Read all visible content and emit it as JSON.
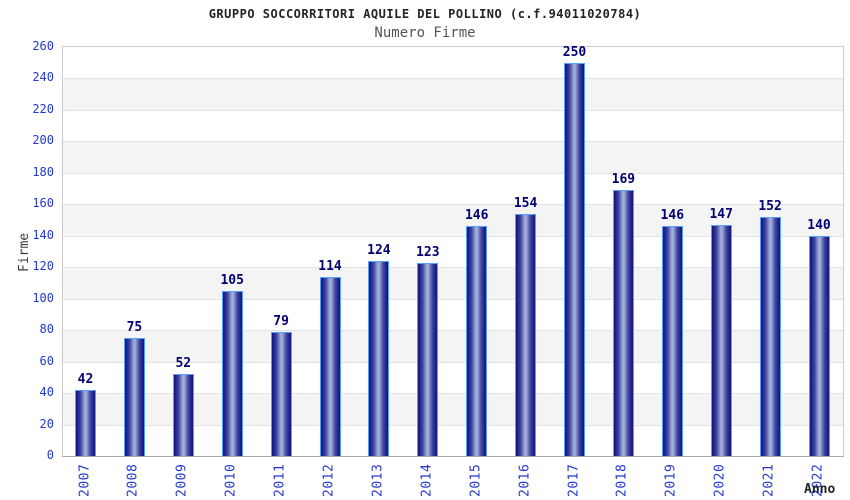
{
  "chart_data": {
    "type": "bar",
    "title": "GRUPPO SOCCORRITORI AQUILE DEL POLLINO (c.f.94011020784)",
    "subtitle": "Numero Firme",
    "xlabel": "Anno",
    "ylabel": "Firme",
    "categories": [
      "2007",
      "2008",
      "2009",
      "2010",
      "2011",
      "2012",
      "2013",
      "2014",
      "2015",
      "2016",
      "2017",
      "2018",
      "2019",
      "2020",
      "2021",
      "2022"
    ],
    "values": [
      42,
      75,
      52,
      105,
      79,
      114,
      124,
      123,
      146,
      154,
      250,
      169,
      146,
      147,
      152,
      140
    ],
    "ylim": [
      0,
      260
    ],
    "ytick_step": 20,
    "grid": "horizontal, alternating shaded bands",
    "legend": "none",
    "colors": {
      "axis_tick_text": "#2438cf",
      "data_label_text": "#000070",
      "title_text": "#222228",
      "subtitle_text": "#55555a",
      "bar_dark": "#15157d",
      "bar_light": "#aab2e0",
      "bar_border": "#55a0ff",
      "band_gray": "#f4f4f4",
      "plot_border": "#cccccc"
    }
  }
}
